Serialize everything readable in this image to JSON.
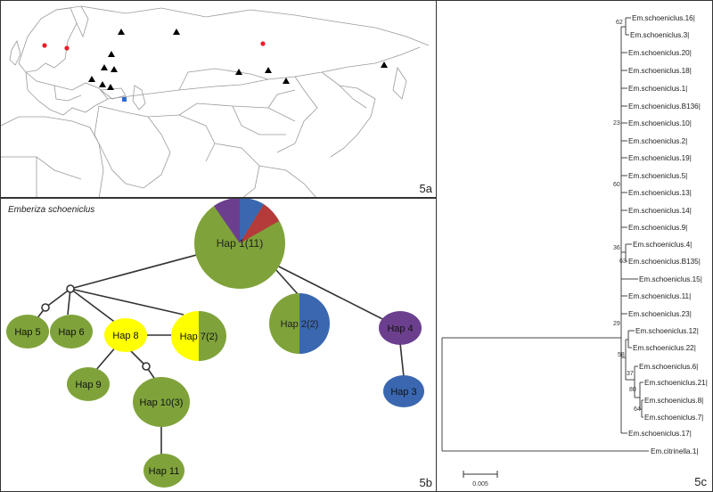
{
  "panel_a": {
    "label": "5a",
    "colors": {
      "triangle": "#000000",
      "red": "#e8202a",
      "blue": "#2f6bd8"
    },
    "markers_note": "sample-site markers on a map of Eurasia"
  },
  "panel_b": {
    "label": "5b",
    "species": "Emberiza schoeniclus",
    "colors": {
      "green": "#7fa33a",
      "yellow": "#ffff00",
      "blue": "#3a67b0",
      "purple": "#6c3f8e",
      "red": "#b53a3a"
    },
    "haplotypes": [
      {
        "id": "hap1",
        "label": "Hap 1(11)"
      },
      {
        "id": "hap2",
        "label": "Hap 2(2)"
      },
      {
        "id": "hap3",
        "label": "Hap 3"
      },
      {
        "id": "hap4",
        "label": "Hap 4"
      },
      {
        "id": "hap5",
        "label": "Hap 5"
      },
      {
        "id": "hap6",
        "label": "Hap 6"
      },
      {
        "id": "hap7",
        "label": "Hap 7(2)"
      },
      {
        "id": "hap8",
        "label": "Hap 8"
      },
      {
        "id": "hap9",
        "label": "Hap 9"
      },
      {
        "id": "hap10",
        "label": "Hap 10(3)"
      },
      {
        "id": "hap11",
        "label": "Hap 11"
      }
    ]
  },
  "panel_c": {
    "label": "5c",
    "scale_label": "0.005",
    "taxa": [
      "Em.schoeniclus.16|",
      "Em.schoeniclus.3|",
      "Em.schoeniclus.20|",
      "Em.schoeniclus.18|",
      "Em.schoeniclus.1|",
      "Em.schoeniclus.B136|",
      "Em.schoeniclus.10|",
      "Em.schoeniclus.2|",
      "Em.schoeniclus.19|",
      "Em.schoeniclus.5|",
      "Em.schoeniclus.13|",
      "Em.schoeniclus.14|",
      "Em.schoeniclus.9|",
      "Em.schoeniclus.4|",
      "Em.schoeniclus.B135|",
      "Em.schoeniclus.15|",
      "Em.schoeniclus.11|",
      "Em.schoeniclus.23|",
      "Em.schoeniclus.12|",
      "Em.schoeniclus.22|",
      "Em.schoeniclus.6|",
      "Em.schoeniclus.21|",
      "Em.schoeniclus.8|",
      "Em.schoeniclus.7|",
      "Em.schoeniclus.17|",
      "Em.citrinella.1|"
    ],
    "support": [
      "62",
      "23",
      "60",
      "36",
      "63",
      "29",
      "58",
      "37",
      "80",
      "64"
    ]
  }
}
